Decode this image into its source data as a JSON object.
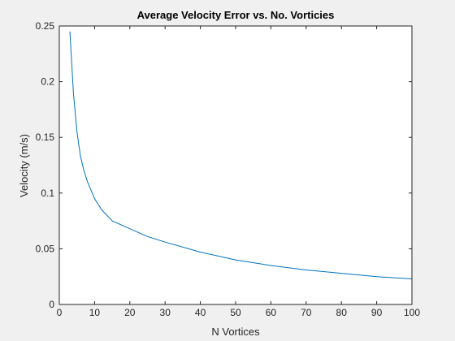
{
  "chart_data": {
    "type": "line",
    "title": "Average Velocity Error vs. No. Vorticies",
    "xlabel": "N Vortices",
    "ylabel": "Velocity (m/s)",
    "xlim": [
      0,
      100
    ],
    "ylim": [
      0,
      0.25
    ],
    "xticks": [
      0,
      10,
      20,
      30,
      40,
      50,
      60,
      70,
      80,
      90,
      100
    ],
    "xtick_labels": [
      "0",
      "10",
      "20",
      "30",
      "40",
      "50",
      "60",
      "70",
      "80",
      "90",
      "100"
    ],
    "yticks": [
      0,
      0.05,
      0.1,
      0.15,
      0.2,
      0.25
    ],
    "ytick_labels": [
      "0",
      "0.05",
      "0.1",
      "0.15",
      "0.2",
      "0.25"
    ],
    "grid": false,
    "colors": {
      "background": "#f0f0f0",
      "axes": "#ffffff",
      "line": "#0072bd",
      "text": "#262626"
    },
    "series": [
      {
        "x": [
          3,
          4,
          5,
          6,
          7,
          8,
          10,
          12,
          15,
          20,
          25,
          30,
          40,
          50,
          60,
          70,
          80,
          90,
          100
        ],
        "values": [
          0.245,
          0.19,
          0.155,
          0.133,
          0.12,
          0.11,
          0.095,
          0.085,
          0.075,
          0.068,
          0.061,
          0.056,
          0.047,
          0.04,
          0.035,
          0.031,
          0.028,
          0.025,
          0.023
        ]
      }
    ]
  }
}
